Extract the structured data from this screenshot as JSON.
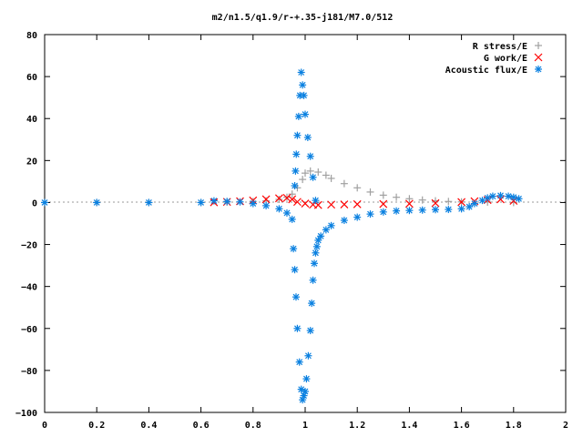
{
  "chart_data": {
    "type": "scatter",
    "title": "m2/n1.5/q1.9/r-+.35-j181/M7.0/512",
    "xlabel": "",
    "ylabel": "",
    "xlim": [
      0,
      2
    ],
    "ylim": [
      -100,
      80
    ],
    "x_ticks": [
      "0",
      "0.2",
      "0.4",
      "0.6",
      "0.8",
      "1",
      "1.2",
      "1.4",
      "1.6",
      "1.8",
      "2"
    ],
    "y_ticks": [
      "80",
      "60",
      "40",
      "20",
      "0",
      "−20",
      "−40",
      "−60",
      "−80",
      "−100"
    ],
    "grid": false,
    "legend_position": "top-right",
    "series": [
      {
        "name": "R stress/E",
        "color": "#a0a0a0",
        "marker": "plus",
        "points": [
          [
            0.0,
            0
          ],
          [
            0.2,
            0
          ],
          [
            0.4,
            0
          ],
          [
            0.6,
            0
          ],
          [
            0.7,
            0.2
          ],
          [
            0.8,
            0.5
          ],
          [
            0.85,
            0.8
          ],
          [
            0.9,
            1.5
          ],
          [
            0.93,
            2.5
          ],
          [
            0.95,
            4
          ],
          [
            0.97,
            7
          ],
          [
            0.99,
            11
          ],
          [
            1.0,
            14
          ],
          [
            1.02,
            15
          ],
          [
            1.05,
            14.5
          ],
          [
            1.08,
            13
          ],
          [
            1.1,
            11.5
          ],
          [
            1.15,
            9
          ],
          [
            1.2,
            7
          ],
          [
            1.25,
            5
          ],
          [
            1.3,
            3.5
          ],
          [
            1.35,
            2.5
          ],
          [
            1.4,
            1.8
          ],
          [
            1.45,
            1.2
          ],
          [
            1.5,
            0.8
          ],
          [
            1.55,
            0.5
          ],
          [
            1.6,
            0.3
          ],
          [
            1.7,
            0.2
          ],
          [
            1.8,
            0
          ]
        ]
      },
      {
        "name": "G work/E",
        "color": "#ff0000",
        "marker": "cross",
        "points": [
          [
            0.65,
            0.1
          ],
          [
            0.7,
            0.3
          ],
          [
            0.75,
            0.6
          ],
          [
            0.8,
            1.0
          ],
          [
            0.85,
            1.5
          ],
          [
            0.9,
            2.0
          ],
          [
            0.93,
            2.2
          ],
          [
            0.95,
            1.5
          ],
          [
            0.97,
            0.3
          ],
          [
            1.0,
            -0.5
          ],
          [
            1.03,
            -1.0
          ],
          [
            1.05,
            -1.2
          ],
          [
            1.1,
            -1.0
          ],
          [
            1.15,
            -0.9
          ],
          [
            1.2,
            -0.8
          ],
          [
            1.3,
            -0.7
          ],
          [
            1.4,
            -0.6
          ],
          [
            1.5,
            -0.3
          ],
          [
            1.6,
            0.2
          ],
          [
            1.65,
            0.6
          ],
          [
            1.7,
            1.2
          ],
          [
            1.75,
            1.5
          ],
          [
            1.8,
            0.8
          ]
        ]
      },
      {
        "name": "Acoustic flux/E",
        "color": "#0a80e0",
        "marker": "star",
        "points": [
          [
            0.0,
            0
          ],
          [
            0.2,
            0
          ],
          [
            0.4,
            0
          ],
          [
            0.6,
            0
          ],
          [
            0.65,
            0.8
          ],
          [
            0.7,
            0.5
          ],
          [
            0.75,
            0.3
          ],
          [
            0.8,
            -0.5
          ],
          [
            0.85,
            -1.5
          ],
          [
            0.9,
            -3
          ],
          [
            0.93,
            -5
          ],
          [
            0.95,
            -8
          ],
          [
            0.955,
            -22
          ],
          [
            0.96,
            -32
          ],
          [
            0.965,
            -45
          ],
          [
            0.97,
            -60
          ],
          [
            0.978,
            -76
          ],
          [
            0.985,
            -89
          ],
          [
            0.99,
            -94
          ],
          [
            0.995,
            -92
          ],
          [
            1.0,
            -90
          ],
          [
            1.005,
            -84
          ],
          [
            1.012,
            -73
          ],
          [
            1.02,
            -61
          ],
          [
            1.025,
            -48
          ],
          [
            1.03,
            -37
          ],
          [
            1.035,
            -29
          ],
          [
            1.04,
            -24
          ],
          [
            1.045,
            -21
          ],
          [
            1.05,
            -18
          ],
          [
            1.06,
            -16
          ],
          [
            1.08,
            -13
          ],
          [
            1.1,
            -11
          ],
          [
            1.15,
            -8.5
          ],
          [
            1.2,
            -7
          ],
          [
            1.25,
            -5.5
          ],
          [
            1.3,
            -4.5
          ],
          [
            1.35,
            -4
          ],
          [
            1.4,
            -3.8
          ],
          [
            1.45,
            -3.6
          ],
          [
            1.5,
            -3.4
          ],
          [
            1.55,
            -3.3
          ],
          [
            1.6,
            -3
          ],
          [
            1.63,
            -2
          ],
          [
            1.65,
            -0.5
          ],
          [
            1.68,
            1
          ],
          [
            1.7,
            2.2
          ],
          [
            1.72,
            3
          ],
          [
            1.75,
            3.3
          ],
          [
            1.78,
            3
          ],
          [
            1.8,
            2.5
          ],
          [
            1.82,
            1.8
          ],
          [
            0.96,
            8
          ],
          [
            0.963,
            15
          ],
          [
            0.966,
            23
          ],
          [
            0.97,
            32
          ],
          [
            0.975,
            41
          ],
          [
            0.98,
            51
          ],
          [
            0.985,
            62
          ],
          [
            0.99,
            56
          ],
          [
            0.995,
            51
          ],
          [
            1.0,
            42
          ],
          [
            1.01,
            31
          ],
          [
            1.02,
            22
          ],
          [
            1.03,
            12
          ],
          [
            1.04,
            1
          ]
        ]
      }
    ]
  }
}
